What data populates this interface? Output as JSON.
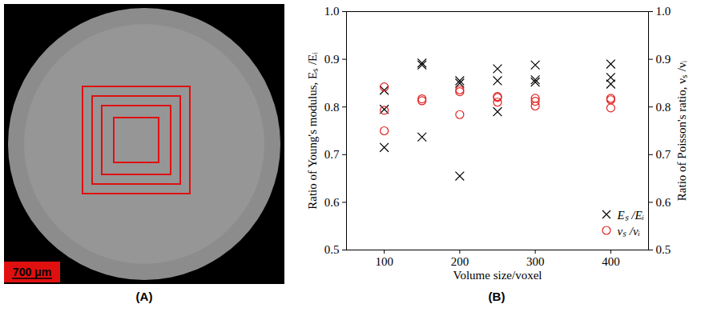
{
  "panels": {
    "A": {
      "label": "(A)",
      "scale_bar": "700 μm"
    },
    "B": {
      "label": "(B)"
    }
  },
  "chart_data": {
    "type": "scatter",
    "xlabel": "Volume size/voxel",
    "ylabel": "Ratio of Young's modulus, Eₛ /Eᵢ",
    "y2label": "Ratio of Poisson's ratio, νₛ /νᵢ",
    "xlim": [
      50,
      450
    ],
    "xticks": [
      100,
      200,
      300,
      400
    ],
    "ylim": [
      0.5,
      1.0
    ],
    "yticks": [
      0.5,
      0.6,
      0.7,
      0.8,
      0.9,
      {
        "value": 1.0,
        "label": "1.0"
      }
    ],
    "y2lim": [
      0.5,
      1.0
    ],
    "y2ticks": [
      0.5,
      0.6,
      0.7,
      0.8,
      0.9,
      {
        "value": 1.0,
        "label": "1.0"
      }
    ],
    "legend": "lower right",
    "series": [
      {
        "name": "Eₛ /Eᵢ",
        "color": "#000000",
        "marker": "x",
        "x": [
          100,
          100,
          100,
          150,
          150,
          150,
          200,
          200,
          200,
          250,
          250,
          250,
          300,
          300,
          300,
          400,
          400,
          400
        ],
        "values": [
          0.835,
          0.795,
          0.715,
          0.892,
          0.888,
          0.737,
          0.855,
          0.85,
          0.655,
          0.88,
          0.855,
          0.79,
          0.888,
          0.857,
          0.852,
          0.89,
          0.862,
          0.848
        ]
      },
      {
        "name": "νₛ /νᵢ",
        "color": "#e02020",
        "marker": "circle",
        "axis": "y2",
        "x": [
          100,
          100,
          100,
          150,
          150,
          200,
          200,
          200,
          250,
          250,
          250,
          300,
          300,
          300,
          400,
          400,
          400
        ],
        "values": [
          0.842,
          0.793,
          0.75,
          0.817,
          0.813,
          0.836,
          0.832,
          0.784,
          0.822,
          0.82,
          0.81,
          0.818,
          0.812,
          0.802,
          0.818,
          0.815,
          0.798
        ]
      }
    ]
  }
}
